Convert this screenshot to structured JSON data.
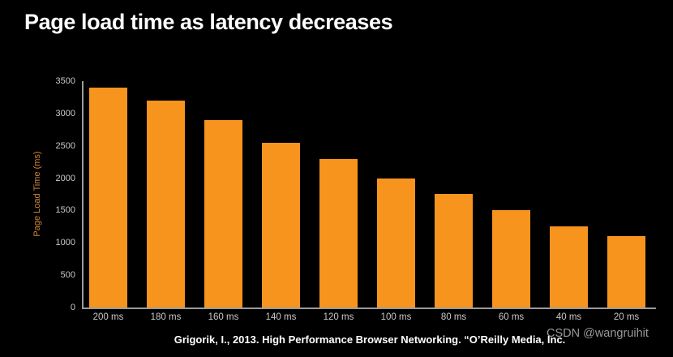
{
  "title": "Page load time as latency decreases",
  "chart_data": {
    "type": "bar",
    "categories": [
      "200 ms",
      "180 ms",
      "160 ms",
      "140 ms",
      "120 ms",
      "100 ms",
      "80 ms",
      "60 ms",
      "40 ms",
      "20 ms"
    ],
    "values": [
      3400,
      3200,
      2900,
      2550,
      2300,
      2000,
      1750,
      1500,
      1250,
      1100
    ],
    "title": "Page load time as latency decreases",
    "xlabel": "",
    "ylabel": "Page Load Time (ms)",
    "ylim": [
      0,
      3500
    ],
    "yticks": [
      0,
      500,
      1000,
      1500,
      2000,
      2500,
      3000,
      3500
    ],
    "grid": false,
    "legend": "none"
  },
  "colors": {
    "background": "#000000",
    "bar": "#F7941E",
    "axis": "#9C9C9C",
    "tick_text": "#C9C9C9",
    "title_text": "#FFFFFF",
    "ylabel_text": "#D08438",
    "caption_text": "#FFFFFF",
    "watermark_text": "#9A9A9A"
  },
  "caption": "Grigorik, I., 2013. High Performance Browser Networking. “O’Reilly Media, Inc.",
  "watermark": "CSDN @wangruihit"
}
